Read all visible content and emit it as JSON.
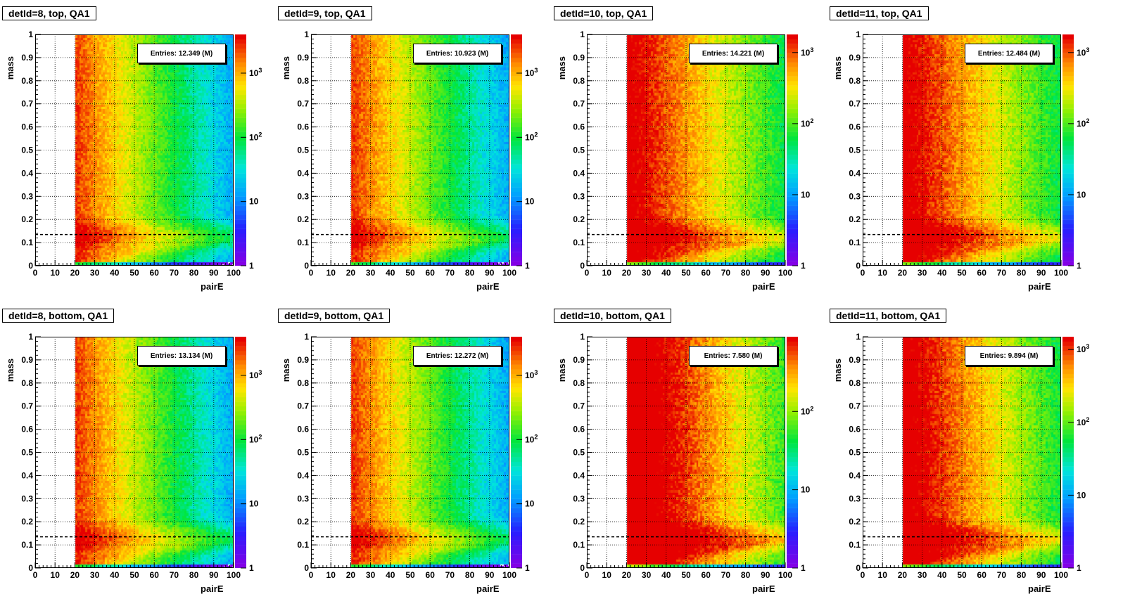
{
  "chart_data": [
    {
      "type": "heatmap",
      "title": "detId=8, top, QA1",
      "entries": "Entries: 12.349 (M)",
      "xlabel": "pairE",
      "ylabel": "mass",
      "xlim": [
        0,
        100
      ],
      "ylim": [
        0,
        1
      ],
      "xticks": [
        "0",
        "10",
        "20",
        "30",
        "40",
        "50",
        "60",
        "70",
        "80",
        "90",
        "100"
      ],
      "yticks": [
        "0",
        "0.1",
        "0.2",
        "0.3",
        "0.4",
        "0.5",
        "0.6",
        "0.7",
        "0.8",
        "0.9",
        "1"
      ],
      "z_scale": "log",
      "z_ticks": [
        "1",
        "10",
        "10^2",
        "10^3"
      ],
      "z_max": 4000,
      "spread": 1.0,
      "line_y": 0.135
    },
    {
      "type": "heatmap",
      "title": "detId=9, top, QA1",
      "entries": "Entries: 10.923 (M)",
      "xlabel": "pairE",
      "ylabel": "mass",
      "xlim": [
        0,
        100
      ],
      "ylim": [
        0,
        1
      ],
      "xticks": [
        "0",
        "10",
        "20",
        "30",
        "40",
        "50",
        "60",
        "70",
        "80",
        "90",
        "100"
      ],
      "yticks": [
        "0",
        "0.1",
        "0.2",
        "0.3",
        "0.4",
        "0.5",
        "0.6",
        "0.7",
        "0.8",
        "0.9",
        "1"
      ],
      "z_scale": "log",
      "z_ticks": [
        "1",
        "10",
        "10^2",
        "10^3"
      ],
      "z_max": 4000,
      "spread": 1.0,
      "line_y": 0.135
    },
    {
      "type": "heatmap",
      "title": "detId=10, top, QA1",
      "entries": "Entries: 14.221 (M)",
      "xlabel": "pairE",
      "ylabel": "mass",
      "xlim": [
        0,
        100
      ],
      "ylim": [
        0,
        1
      ],
      "xticks": [
        "0",
        "10",
        "20",
        "30",
        "40",
        "50",
        "60",
        "70",
        "80",
        "90",
        "100"
      ],
      "yticks": [
        "0",
        "0.1",
        "0.2",
        "0.3",
        "0.4",
        "0.5",
        "0.6",
        "0.7",
        "0.8",
        "0.9",
        "1"
      ],
      "z_scale": "log",
      "z_ticks": [
        "1",
        "10",
        "10^2",
        "10^3"
      ],
      "z_max": 1800,
      "spread": 1.6,
      "line_y": 0.135
    },
    {
      "type": "heatmap",
      "title": "detId=11, top, QA1",
      "entries": "Entries: 12.484 (M)",
      "xlabel": "pairE",
      "ylabel": "mass",
      "xlim": [
        0,
        100
      ],
      "ylim": [
        0,
        1
      ],
      "xticks": [
        "0",
        "10",
        "20",
        "30",
        "40",
        "50",
        "60",
        "70",
        "80",
        "90",
        "100"
      ],
      "yticks": [
        "0",
        "0.1",
        "0.2",
        "0.3",
        "0.4",
        "0.5",
        "0.6",
        "0.7",
        "0.8",
        "0.9",
        "1"
      ],
      "z_scale": "log",
      "z_ticks": [
        "1",
        "10",
        "10^2",
        "10^3"
      ],
      "z_max": 1800,
      "spread": 1.6,
      "line_y": 0.135
    },
    {
      "type": "heatmap",
      "title": "detId=8, bottom, QA1",
      "entries": "Entries: 13.134 (M)",
      "xlabel": "pairE",
      "ylabel": "mass",
      "xlim": [
        0,
        100
      ],
      "ylim": [
        0,
        1
      ],
      "xticks": [
        "0",
        "10",
        "20",
        "30",
        "40",
        "50",
        "60",
        "70",
        "80",
        "90",
        "100"
      ],
      "yticks": [
        "0",
        "0.1",
        "0.2",
        "0.3",
        "0.4",
        "0.5",
        "0.6",
        "0.7",
        "0.8",
        "0.9",
        "1"
      ],
      "z_scale": "log",
      "z_ticks": [
        "1",
        "10",
        "10^2",
        "10^3"
      ],
      "z_max": 4000,
      "spread": 1.0,
      "line_y": 0.135
    },
    {
      "type": "heatmap",
      "title": "detId=9, bottom, QA1",
      "entries": "Entries: 12.272 (M)",
      "xlabel": "pairE",
      "ylabel": "mass",
      "xlim": [
        0,
        100
      ],
      "ylim": [
        0,
        1
      ],
      "xticks": [
        "0",
        "10",
        "20",
        "30",
        "40",
        "50",
        "60",
        "70",
        "80",
        "90",
        "100"
      ],
      "yticks": [
        "0",
        "0.1",
        "0.2",
        "0.3",
        "0.4",
        "0.5",
        "0.6",
        "0.7",
        "0.8",
        "0.9",
        "1"
      ],
      "z_scale": "log",
      "z_ticks": [
        "1",
        "10",
        "10^2",
        "10^3"
      ],
      "z_max": 4000,
      "spread": 1.0,
      "line_y": 0.135
    },
    {
      "type": "heatmap",
      "title": "detId=10, bottom, QA1",
      "entries": "Entries: 7.580 (M)",
      "xlabel": "pairE",
      "ylabel": "mass",
      "xlim": [
        0,
        100
      ],
      "ylim": [
        0,
        1
      ],
      "xticks": [
        "0",
        "10",
        "20",
        "30",
        "40",
        "50",
        "60",
        "70",
        "80",
        "90",
        "100"
      ],
      "yticks": [
        "0",
        "0.1",
        "0.2",
        "0.3",
        "0.4",
        "0.5",
        "0.6",
        "0.7",
        "0.8",
        "0.9",
        "1"
      ],
      "z_scale": "log",
      "z_ticks": [
        "1",
        "10",
        "10^2"
      ],
      "z_max": 900,
      "spread": 1.6,
      "line_y": 0.135
    },
    {
      "type": "heatmap",
      "title": "detId=11, bottom, QA1",
      "entries": "Entries: 9.894 (M)",
      "xlabel": "pairE",
      "ylabel": "mass",
      "xlim": [
        0,
        100
      ],
      "ylim": [
        0,
        1
      ],
      "xticks": [
        "0",
        "10",
        "20",
        "30",
        "40",
        "50",
        "60",
        "70",
        "80",
        "90",
        "100"
      ],
      "yticks": [
        "0",
        "0.1",
        "0.2",
        "0.3",
        "0.4",
        "0.5",
        "0.6",
        "0.7",
        "0.8",
        "0.9",
        "1"
      ],
      "z_scale": "log",
      "z_ticks": [
        "1",
        "10",
        "10^2",
        "10^3"
      ],
      "z_max": 1500,
      "spread": 1.6,
      "line_y": 0.135
    }
  ]
}
